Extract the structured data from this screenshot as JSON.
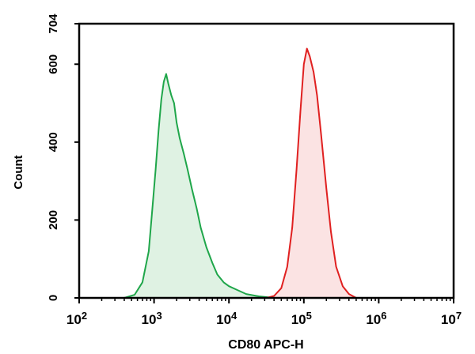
{
  "chart_data": {
    "type": "area",
    "xlabel": "CD80 APC-H",
    "ylabel": "Count",
    "x_scale": "log",
    "xlim": [
      100,
      10000000
    ],
    "ylim": [
      0,
      704
    ],
    "x_ticks": [
      {
        "value": 100,
        "base": "10",
        "exp": "2"
      },
      {
        "value": 1000,
        "base": "10",
        "exp": "3"
      },
      {
        "value": 10000,
        "base": "10",
        "exp": "4"
      },
      {
        "value": 100000,
        "base": "10",
        "exp": "5"
      },
      {
        "value": 1000000,
        "base": "10",
        "exp": "6"
      },
      {
        "value": 10000000,
        "base": "10",
        "exp": "7"
      }
    ],
    "y_ticks": [
      {
        "value": 0,
        "label": "0"
      },
      {
        "value": 200,
        "label": "200"
      },
      {
        "value": 400,
        "label": "400"
      },
      {
        "value": 600,
        "label": "600"
      },
      {
        "value": 704,
        "label": "704"
      }
    ],
    "grid": false,
    "series": [
      {
        "color": "#1fa64a",
        "fill": "#dff2e3",
        "points": [
          [
            400,
            0
          ],
          [
            550,
            8
          ],
          [
            700,
            40
          ],
          [
            850,
            120
          ],
          [
            950,
            230
          ],
          [
            1050,
            330
          ],
          [
            1150,
            430
          ],
          [
            1250,
            510
          ],
          [
            1350,
            555
          ],
          [
            1450,
            575
          ],
          [
            1550,
            550
          ],
          [
            1700,
            520
          ],
          [
            1850,
            500
          ],
          [
            2000,
            450
          ],
          [
            2200,
            410
          ],
          [
            2500,
            370
          ],
          [
            2800,
            330
          ],
          [
            3200,
            280
          ],
          [
            3700,
            230
          ],
          [
            4200,
            180
          ],
          [
            5000,
            130
          ],
          [
            6000,
            90
          ],
          [
            7000,
            60
          ],
          [
            8500,
            40
          ],
          [
            10000,
            30
          ],
          [
            13000,
            20
          ],
          [
            17000,
            10
          ],
          [
            25000,
            4
          ],
          [
            40000,
            0
          ]
        ]
      },
      {
        "color": "#e02020",
        "fill": "#fbe3e3",
        "points": [
          [
            32000,
            0
          ],
          [
            40000,
            5
          ],
          [
            50000,
            25
          ],
          [
            60000,
            80
          ],
          [
            70000,
            180
          ],
          [
            80000,
            330
          ],
          [
            90000,
            480
          ],
          [
            100000,
            600
          ],
          [
            110000,
            640
          ],
          [
            120000,
            620
          ],
          [
            135000,
            580
          ],
          [
            150000,
            520
          ],
          [
            170000,
            420
          ],
          [
            200000,
            280
          ],
          [
            230000,
            170
          ],
          [
            270000,
            80
          ],
          [
            330000,
            30
          ],
          [
            400000,
            10
          ],
          [
            500000,
            0
          ]
        ]
      }
    ]
  }
}
